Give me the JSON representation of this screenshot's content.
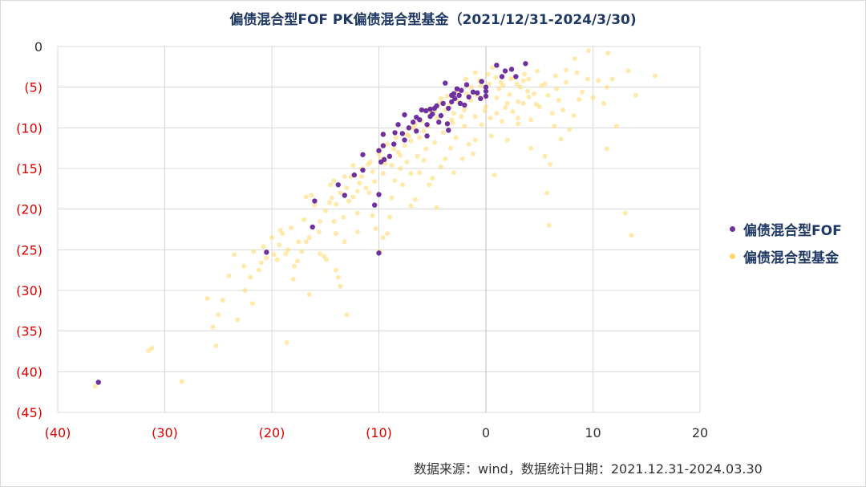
{
  "chart_data": {
    "type": "scatter",
    "title": "偏债混合型FOF PK偏债混合型基金（2021/12/31-2024/3/30)",
    "xlabel": "",
    "ylabel": "",
    "xlim": [
      -40,
      20
    ],
    "ylim": [
      -45,
      0
    ],
    "x_ticks": [
      -40,
      -30,
      -20,
      -10,
      0,
      10,
      20
    ],
    "x_tick_labels": [
      "(40)",
      "(30)",
      "(20)",
      "(10)",
      "0",
      "10",
      "20"
    ],
    "y_ticks": [
      0,
      -5,
      -10,
      -15,
      -20,
      -25,
      -30,
      -35,
      -40,
      -45
    ],
    "y_tick_labels": [
      "0",
      "(5)",
      "(10)",
      "(15)",
      "(20)",
      "(25)",
      "(30)",
      "(35)",
      "(40)",
      "(45)"
    ],
    "negative_label_color": "#e00000",
    "positive_label_color": "#333333",
    "grid": true,
    "legend_position": "right",
    "series": [
      {
        "name": "偏债混合型FOF",
        "color": "#7030a0",
        "points": [
          [
            -36.2,
            -41.3
          ],
          [
            -20.5,
            -25.3
          ],
          [
            -10.0,
            -25.4
          ],
          [
            -16.2,
            -22.2
          ],
          [
            -10.4,
            -19.5
          ],
          [
            -16.0,
            -19.0
          ],
          [
            -13.2,
            -18.3
          ],
          [
            -10.0,
            -18.2
          ],
          [
            -13.8,
            -17.0
          ],
          [
            -12.3,
            -15.8
          ],
          [
            -11.5,
            -15.2
          ],
          [
            -11.5,
            -13.3
          ],
          [
            -9.8,
            -14.2
          ],
          [
            -9.5,
            -13.9
          ],
          [
            -9.0,
            -13.5
          ],
          [
            -10.0,
            -12.8
          ],
          [
            -9.6,
            -12.2
          ],
          [
            -8.6,
            -12.0
          ],
          [
            -7.6,
            -11.5
          ],
          [
            -7.8,
            -10.7
          ],
          [
            -9.6,
            -10.8
          ],
          [
            -8.5,
            -10.6
          ],
          [
            -6.5,
            -10.4
          ],
          [
            -7.2,
            -10.0
          ],
          [
            -6.8,
            -9.3
          ],
          [
            -6.2,
            -9.0
          ],
          [
            -5.5,
            -9.6
          ],
          [
            -5.2,
            -8.6
          ],
          [
            -5.0,
            -8.3
          ],
          [
            -5.6,
            -7.9
          ],
          [
            -4.2,
            -8.5
          ],
          [
            -4.6,
            -7.3
          ],
          [
            -4.0,
            -7.0
          ],
          [
            -3.5,
            -7.6
          ],
          [
            -3.2,
            -6.8
          ],
          [
            -2.9,
            -6.4
          ],
          [
            -2.5,
            -6.0
          ],
          [
            -2.3,
            -5.4
          ],
          [
            -1.6,
            -6.2
          ],
          [
            -1.2,
            -5.6
          ],
          [
            -0.8,
            -5.7
          ],
          [
            -0.5,
            -6.4
          ],
          [
            0.0,
            -5.0
          ],
          [
            0.0,
            -5.5
          ],
          [
            0.0,
            -6.1
          ],
          [
            1.5,
            -3.7
          ],
          [
            1.8,
            -3.0
          ],
          [
            1.0,
            -2.3
          ],
          [
            2.4,
            -2.8
          ],
          [
            2.8,
            -3.7
          ],
          [
            3.7,
            -2.1
          ],
          [
            -3.8,
            -4.5
          ],
          [
            -2.7,
            -5.2
          ],
          [
            -3.5,
            -10.3
          ],
          [
            -5.5,
            -11.0
          ],
          [
            -3.6,
            -9.5
          ],
          [
            -6.0,
            -7.8
          ],
          [
            -8.2,
            -9.6
          ],
          [
            -7.6,
            -8.4
          ],
          [
            -4.8,
            -7.6
          ],
          [
            -2.4,
            -7.0
          ],
          [
            -3.0,
            -5.8
          ],
          [
            -1.8,
            -4.7
          ],
          [
            -3.2,
            -6.0
          ],
          [
            -5.2,
            -7.7
          ],
          [
            -2.0,
            -7.2
          ],
          [
            -0.4,
            -4.3
          ],
          [
            -6.5,
            -8.7
          ],
          [
            -4.4,
            -9.3
          ]
        ]
      },
      {
        "name": "偏债混合型基金",
        "color": "#ffd966",
        "points": [
          [
            -36.5,
            -41.8
          ],
          [
            -31.5,
            -37.4
          ],
          [
            -31.2,
            -37.1
          ],
          [
            -28.4,
            -41.2
          ],
          [
            -26.0,
            -31.0
          ],
          [
            -25.5,
            -34.5
          ],
          [
            -25.2,
            -36.8
          ],
          [
            -25.0,
            -33.0
          ],
          [
            -23.2,
            -33.6
          ],
          [
            -22.5,
            -30.0
          ],
          [
            -22.6,
            -27.0
          ],
          [
            -21.8,
            -31.6
          ],
          [
            -21.7,
            -25.2
          ],
          [
            -21.2,
            -27.5
          ],
          [
            -20.8,
            -24.6
          ],
          [
            -20.5,
            -26.0
          ],
          [
            -19.8,
            -25.6
          ],
          [
            -19.5,
            -26.2
          ],
          [
            -19.3,
            -24.4
          ],
          [
            -19.0,
            -23.0
          ],
          [
            -18.7,
            -25.5
          ],
          [
            -18.5,
            -25.0
          ],
          [
            -18.2,
            -22.3
          ],
          [
            -17.9,
            -27.0
          ],
          [
            -17.6,
            -26.4
          ],
          [
            -18.6,
            -36.4
          ],
          [
            -17.5,
            -24.0
          ],
          [
            -17.2,
            -25.2
          ],
          [
            -16.5,
            -23.5
          ],
          [
            -16.5,
            -30.5
          ],
          [
            -16.8,
            -18.5
          ],
          [
            -16.0,
            -19.5
          ],
          [
            -15.5,
            -21.5
          ],
          [
            -15.5,
            -25.5
          ],
          [
            -15.1,
            -25.8
          ],
          [
            -14.9,
            -26.2
          ],
          [
            -14.5,
            -17.0
          ],
          [
            -14.2,
            -16.5
          ],
          [
            -14.6,
            -19.2
          ],
          [
            -14.2,
            -21.5
          ],
          [
            -14.0,
            -23.0
          ],
          [
            -14.0,
            -27.5
          ],
          [
            -13.8,
            -28.4
          ],
          [
            -13.6,
            -29.5
          ],
          [
            -13.0,
            -33.0
          ],
          [
            -13.3,
            -21.0
          ],
          [
            -13.2,
            -24.0
          ],
          [
            -12.6,
            -16.0
          ],
          [
            -12.4,
            -18.5
          ],
          [
            -12.0,
            -20.5
          ],
          [
            -11.6,
            -16.0
          ],
          [
            -11.0,
            -14.5
          ],
          [
            -10.9,
            -18.0
          ],
          [
            -10.6,
            -20.8
          ],
          [
            -10.3,
            -22.4
          ],
          [
            -9.9,
            -25.2
          ],
          [
            -9.6,
            -23.5
          ],
          [
            -9.2,
            -23.0
          ],
          [
            -8.8,
            -18.6
          ],
          [
            -8.5,
            -16.5
          ],
          [
            -8.0,
            -15.0
          ],
          [
            -7.8,
            -17.0
          ],
          [
            -7.4,
            -14.2
          ],
          [
            -7.0,
            -15.6
          ],
          [
            -6.6,
            -18.8
          ],
          [
            -6.2,
            -15.5
          ],
          [
            -5.8,
            -14.0
          ],
          [
            -5.3,
            -17.0
          ],
          [
            -4.6,
            -19.8
          ],
          [
            -4.2,
            -14.8
          ],
          [
            -3.8,
            -13.8
          ],
          [
            -3.3,
            -12.5
          ],
          [
            -2.8,
            -11.2
          ],
          [
            -2.2,
            -13.8
          ],
          [
            -1.6,
            -12.0
          ],
          [
            -1.0,
            -11.5
          ],
          [
            -0.4,
            -9.6
          ],
          [
            0.4,
            -8.8
          ],
          [
            0.8,
            -15.8
          ],
          [
            2.0,
            -11.5
          ],
          [
            3.0,
            -9.5
          ],
          [
            4.2,
            -12.5
          ],
          [
            5.5,
            -13.5
          ],
          [
            6.0,
            -14.5
          ],
          [
            5.7,
            -18.0
          ],
          [
            5.9,
            -22.0
          ],
          [
            11.3,
            -12.6
          ],
          [
            13.0,
            -20.5
          ],
          [
            13.6,
            -23.2
          ],
          [
            9.6,
            -0.5
          ],
          [
            11.4,
            -0.8
          ],
          [
            13.3,
            -3.0
          ],
          [
            15.8,
            -3.6
          ],
          [
            8.3,
            -1.5
          ],
          [
            7.5,
            -2.9
          ],
          [
            11.3,
            -5.0
          ],
          [
            11.0,
            -7.0
          ],
          [
            10.0,
            -6.3
          ],
          [
            9.5,
            -4.0
          ],
          [
            8.7,
            -6.5
          ],
          [
            8.2,
            -8.5
          ],
          [
            7.8,
            -10.2
          ],
          [
            7.2,
            -7.8
          ],
          [
            6.6,
            -5.2
          ],
          [
            6.2,
            -8.2
          ],
          [
            5.8,
            -6.0
          ],
          [
            5.2,
            -4.8
          ],
          [
            4.7,
            -7.1
          ],
          [
            4.2,
            -9.0
          ],
          [
            3.9,
            -5.5
          ],
          [
            3.5,
            -4.2
          ],
          [
            3.0,
            -6.8
          ],
          [
            2.6,
            -3.8
          ],
          [
            2.2,
            -5.9
          ],
          [
            1.8,
            -7.5
          ],
          [
            1.4,
            -4.4
          ],
          [
            1.0,
            -6.3
          ],
          [
            0.6,
            -2.6
          ],
          [
            0.2,
            -3.4
          ],
          [
            -0.1,
            -7.9
          ],
          [
            -0.5,
            -4.8
          ],
          [
            -1.0,
            -3.2
          ],
          [
            -1.4,
            -6.6
          ],
          [
            -1.9,
            -4.0
          ],
          [
            -2.3,
            -8.6
          ],
          [
            -2.7,
            -5.5
          ],
          [
            -3.1,
            -9.4
          ],
          [
            -3.6,
            -6.1
          ],
          [
            -4.0,
            -10.6
          ],
          [
            -4.4,
            -7.0
          ],
          [
            -4.8,
            -11.8
          ],
          [
            -5.2,
            -8.2
          ],
          [
            -5.6,
            -12.6
          ],
          [
            -6.0,
            -9.2
          ],
          [
            -6.4,
            -13.5
          ],
          [
            -6.8,
            -10.0
          ],
          [
            -7.2,
            -11.0
          ],
          [
            -7.6,
            -12.2
          ],
          [
            -8.0,
            -13.4
          ],
          [
            -8.4,
            -11.2
          ],
          [
            -8.8,
            -14.6
          ],
          [
            -9.2,
            -12.0
          ],
          [
            -9.6,
            -15.6
          ],
          [
            -10.0,
            -13.2
          ],
          [
            -10.4,
            -16.6
          ],
          [
            -10.8,
            -14.2
          ],
          [
            -11.2,
            -17.4
          ],
          [
            -11.6,
            -15.0
          ],
          [
            -12.0,
            -17.8
          ],
          [
            -12.4,
            -14.6
          ],
          [
            -12.8,
            -19.0
          ],
          [
            -13.2,
            -16.0
          ],
          [
            -13.6,
            -18.0
          ],
          [
            -14.0,
            -19.4
          ],
          [
            -15.0,
            -20.2
          ],
          [
            -16.3,
            -18.3
          ],
          [
            -17.0,
            -21.3
          ],
          [
            -20.0,
            -23.5
          ],
          [
            -21.0,
            -26.6
          ],
          [
            -23.5,
            -25.6
          ],
          [
            -24.0,
            -28.2
          ],
          [
            -18.0,
            -28.6
          ],
          [
            -12.0,
            -22.8
          ],
          [
            -9.0,
            -21.0
          ],
          [
            -7.0,
            -19.6
          ],
          [
            -5.0,
            -16.2
          ],
          [
            -3.0,
            -15.5
          ],
          [
            -1.2,
            -13.2
          ],
          [
            0.5,
            -11.0
          ],
          [
            1.5,
            -9.2
          ],
          [
            2.5,
            -8.0
          ],
          [
            3.5,
            -7.0
          ],
          [
            4.5,
            -5.8
          ],
          [
            5.5,
            -4.6
          ],
          [
            6.5,
            -3.6
          ],
          [
            7.5,
            -4.4
          ],
          [
            8.5,
            -3.2
          ],
          [
            9.0,
            -5.6
          ],
          [
            10.5,
            -4.2
          ],
          [
            6.8,
            -6.6
          ],
          [
            5.0,
            -7.4
          ],
          [
            3.2,
            -5.0
          ],
          [
            1.2,
            -5.2
          ],
          [
            -0.8,
            -6.0
          ],
          [
            -2.0,
            -7.8
          ],
          [
            -3.4,
            -7.2
          ],
          [
            -4.6,
            -8.8
          ],
          [
            -5.8,
            -10.4
          ],
          [
            -7.0,
            -11.6
          ],
          [
            -8.2,
            -13.0
          ],
          [
            -9.4,
            -14.4
          ],
          [
            -10.6,
            -15.4
          ],
          [
            -11.8,
            -16.8
          ],
          [
            -13.0,
            -17.4
          ],
          [
            -14.4,
            -18.6
          ],
          [
            -15.6,
            -22.8
          ],
          [
            -16.8,
            -24.0
          ],
          [
            -19.2,
            -22.6
          ],
          [
            -22.0,
            -28.4
          ],
          [
            -24.6,
            -31.2
          ],
          [
            -4.2,
            -6.4
          ],
          [
            -3.8,
            -7.8
          ],
          [
            -3.0,
            -8.2
          ],
          [
            -2.6,
            -6.8
          ],
          [
            -1.8,
            -5.8
          ],
          [
            -1.4,
            -5.0
          ],
          [
            -0.6,
            -4.2
          ],
          [
            0.3,
            -4.6
          ],
          [
            0.9,
            -3.8
          ],
          [
            1.6,
            -4.8
          ],
          [
            2.3,
            -4.0
          ],
          [
            2.9,
            -4.6
          ],
          [
            3.6,
            -3.4
          ],
          [
            4.0,
            -4.0
          ],
          [
            4.8,
            -3.0
          ],
          [
            -5.4,
            -9.8
          ],
          [
            -6.2,
            -11.2
          ],
          [
            -6.6,
            -9.6
          ],
          [
            -7.4,
            -10.8
          ],
          [
            -8.6,
            -12.6
          ],
          [
            -9.8,
            -13.8
          ],
          [
            -4.8,
            -8.0
          ],
          [
            -3.2,
            -9.0
          ],
          [
            -2.0,
            -9.8
          ],
          [
            -1.0,
            -8.6
          ],
          [
            0.0,
            -7.4
          ],
          [
            1.0,
            -8.2
          ],
          [
            2.0,
            -7.0
          ],
          [
            3.0,
            -8.8
          ],
          [
            4.0,
            -6.2
          ],
          [
            12.2,
            -9.8
          ],
          [
            11.8,
            -4.0
          ],
          [
            14.0,
            -6.0
          ],
          [
            7.0,
            -11.4
          ],
          [
            6.4,
            -9.8
          ]
        ]
      }
    ]
  },
  "source_note": "数据来源：wind，数据统计日期：2021.12.31-2024.03.30"
}
